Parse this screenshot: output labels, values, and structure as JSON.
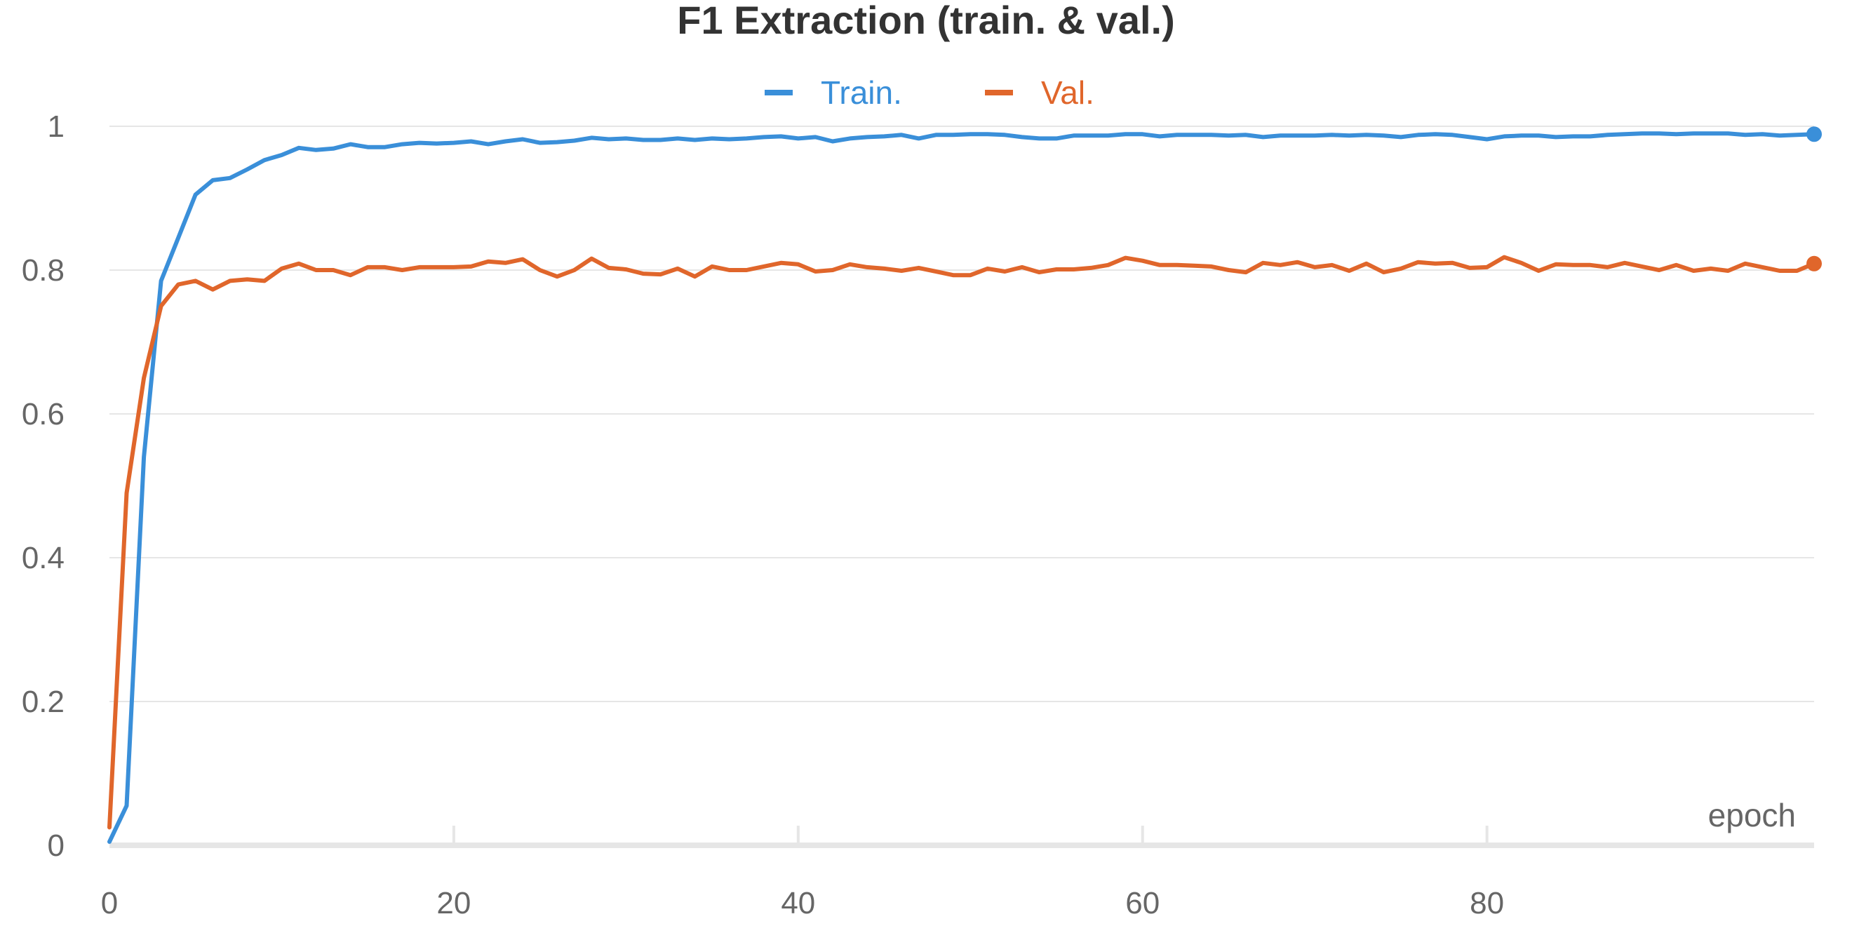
{
  "chart_data": {
    "type": "line",
    "title": "F1 Extraction (train. & val.)",
    "xlabel": "epoch",
    "ylabel": "",
    "xlim": [
      0,
      99
    ],
    "ylim": [
      0,
      1
    ],
    "x_ticks": [
      0,
      20,
      40,
      60,
      80
    ],
    "x_tick_labels": [
      "0",
      "20",
      "40",
      "60",
      "80"
    ],
    "y_ticks": [
      0,
      0.2,
      0.4,
      0.6,
      0.8,
      1
    ],
    "y_tick_labels": [
      "0",
      "0.2",
      "0.4",
      "0.6",
      "0.8",
      "1"
    ],
    "grid": true,
    "legend_position": "top-center",
    "series": [
      {
        "name": "Train.",
        "color": "#3a8fd9",
        "marker_at_last": true,
        "values": [
          0.005,
          0.055,
          0.54,
          0.785,
          0.845,
          0.905,
          0.925,
          0.928,
          0.94,
          0.953,
          0.96,
          0.97,
          0.967,
          0.969,
          0.975,
          0.971,
          0.971,
          0.975,
          0.977,
          0.976,
          0.977,
          0.979,
          0.975,
          0.979,
          0.982,
          0.977,
          0.978,
          0.98,
          0.984,
          0.982,
          0.983,
          0.981,
          0.981,
          0.983,
          0.981,
          0.983,
          0.982,
          0.983,
          0.985,
          0.986,
          0.983,
          0.985,
          0.979,
          0.983,
          0.985,
          0.986,
          0.988,
          0.983,
          0.988,
          0.988,
          0.989,
          0.989,
          0.988,
          0.985,
          0.983,
          0.983,
          0.987,
          0.987,
          0.987,
          0.989,
          0.989,
          0.986,
          0.988,
          0.988,
          0.988,
          0.987,
          0.988,
          0.985,
          0.987,
          0.987,
          0.987,
          0.988,
          0.987,
          0.988,
          0.987,
          0.985,
          0.988,
          0.989,
          0.988,
          0.985,
          0.982,
          0.986,
          0.987,
          0.987,
          0.985,
          0.986,
          0.986,
          0.988,
          0.989,
          0.99,
          0.99,
          0.989,
          0.99,
          0.99,
          0.99,
          0.988,
          0.989,
          0.987,
          0.988,
          0.989
        ]
      },
      {
        "name": "Val.",
        "color": "#e0662b",
        "marker_at_last": true,
        "values": [
          0.025,
          0.49,
          0.65,
          0.75,
          0.78,
          0.785,
          0.773,
          0.785,
          0.787,
          0.785,
          0.802,
          0.809,
          0.8,
          0.8,
          0.793,
          0.804,
          0.804,
          0.8,
          0.804,
          0.804,
          0.804,
          0.805,
          0.812,
          0.81,
          0.815,
          0.8,
          0.791,
          0.8,
          0.816,
          0.803,
          0.801,
          0.795,
          0.794,
          0.802,
          0.791,
          0.805,
          0.8,
          0.8,
          0.805,
          0.81,
          0.808,
          0.798,
          0.8,
          0.808,
          0.804,
          0.802,
          0.799,
          0.803,
          0.798,
          0.793,
          0.793,
          0.802,
          0.798,
          0.804,
          0.797,
          0.801,
          0.801,
          0.803,
          0.807,
          0.817,
          0.813,
          0.807,
          0.807,
          0.806,
          0.805,
          0.8,
          0.797,
          0.81,
          0.807,
          0.811,
          0.804,
          0.807,
          0.799,
          0.809,
          0.797,
          0.802,
          0.811,
          0.809,
          0.81,
          0.803,
          0.804,
          0.818,
          0.81,
          0.799,
          0.808,
          0.807,
          0.807,
          0.804,
          0.81,
          0.805,
          0.8,
          0.807,
          0.799,
          0.802,
          0.799,
          0.809,
          0.804,
          0.799,
          0.799,
          0.809
        ]
      }
    ]
  }
}
